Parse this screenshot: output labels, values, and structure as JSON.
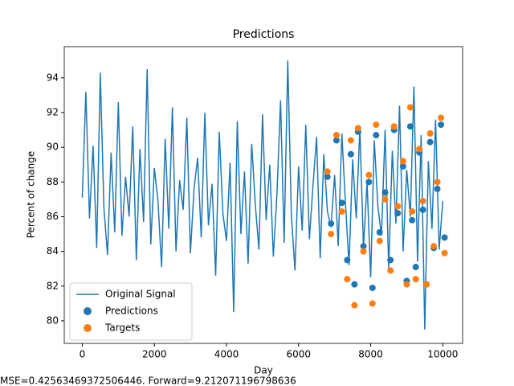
{
  "chart_data": {
    "type": "line",
    "title": "Predictions",
    "xlabel": "Day",
    "ylabel": "Percent of change",
    "footer": "MSE=0.42563469372506446. Forward=9.212071196798636",
    "xlim": [
      -500,
      10550
    ],
    "ylim": [
      78.7,
      95.8
    ],
    "xticks": [
      0,
      2000,
      4000,
      6000,
      8000,
      10000
    ],
    "yticks": [
      80,
      82,
      84,
      86,
      88,
      90,
      92,
      94
    ],
    "legend": "lower left",
    "series": [
      {
        "name": "Original Signal",
        "color": "#1f77b4",
        "type": "line",
        "x": [
          0,
          100,
          200,
          300,
          400,
          500,
          600,
          700,
          800,
          900,
          1000,
          1100,
          1200,
          1300,
          1400,
          1500,
          1600,
          1700,
          1800,
          1900,
          2000,
          2100,
          2200,
          2300,
          2400,
          2500,
          2600,
          2700,
          2800,
          2900,
          3000,
          3100,
          3200,
          3300,
          3400,
          3500,
          3600,
          3700,
          3800,
          3900,
          4000,
          4100,
          4200,
          4300,
          4400,
          4500,
          4600,
          4700,
          4800,
          4900,
          5000,
          5100,
          5200,
          5300,
          5400,
          5500,
          5600,
          5700,
          5800,
          5900,
          6000,
          6100,
          6200,
          6300,
          6400,
          6500,
          6600,
          6700,
          6800,
          6900,
          7000,
          7100,
          7200,
          7300,
          7400,
          7500,
          7600,
          7700,
          7800,
          7900,
          8000,
          8100,
          8200,
          8300,
          8400,
          8500,
          8600,
          8700,
          8800,
          8900,
          9000,
          9100,
          9200,
          9300,
          9400,
          9500,
          9600,
          9700,
          9800,
          9900,
          10000
        ],
        "values": [
          87.1,
          93.2,
          85.9,
          90.1,
          84.2,
          94.3,
          86.5,
          83.8,
          89.7,
          85.1,
          92.6,
          84.9,
          88.3,
          86.0,
          91.2,
          83.5,
          89.9,
          85.7,
          94.5,
          84.4,
          88.8,
          86.9,
          83.1,
          90.5,
          85.3,
          92.3,
          84.0,
          88.1,
          86.4,
          91.7,
          83.9,
          87.6,
          89.4,
          84.8,
          92.0,
          85.5,
          87.9,
          82.6,
          90.9,
          86.2,
          84.6,
          89.1,
          80.5,
          91.5,
          85.0,
          88.6,
          83.3,
          90.2,
          86.7,
          84.1,
          91.9,
          85.8,
          89.0,
          83.7,
          87.3,
          92.7,
          84.5,
          95.0,
          86.1,
          82.9,
          88.9,
          85.2,
          91.3,
          84.7,
          87.8,
          90.6,
          83.6,
          89.6,
          86.3,
          85.4,
          88.4,
          84.3,
          90.8,
          86.8,
          83.2,
          89.3,
          85.9,
          91.1,
          84.2,
          88.0,
          82.5,
          90.4,
          86.6,
          84.9,
          91.0,
          83.0,
          89.8,
          85.6,
          92.4,
          84.0,
          88.7,
          86.0,
          93.5,
          83.4,
          90.7,
          79.5,
          89.2,
          85.3,
          91.6,
          84.1,
          86.9
        ]
      },
      {
        "name": "Predictions",
        "color": "#1f77b4",
        "type": "scatter",
        "x": [
          6800,
          6900,
          7050,
          7200,
          7350,
          7450,
          7550,
          7650,
          7800,
          7950,
          8050,
          8150,
          8250,
          8400,
          8550,
          8650,
          8750,
          8900,
          9000,
          9100,
          9150,
          9250,
          9350,
          9450,
          9550,
          9650,
          9750,
          9850,
          9950,
          10050
        ],
        "values": [
          88.3,
          85.6,
          90.4,
          86.8,
          83.5,
          89.6,
          82.1,
          90.9,
          84.3,
          88.0,
          81.9,
          90.7,
          85.1,
          87.4,
          83.5,
          91.0,
          86.2,
          88.9,
          82.3,
          91.2,
          85.8,
          83.1,
          89.7,
          86.4,
          82.1,
          90.3,
          84.2,
          87.6,
          91.3,
          84.8
        ]
      },
      {
        "name": "Targets",
        "color": "#ff7f0e",
        "type": "scatter",
        "x": [
          6800,
          6900,
          7050,
          7200,
          7350,
          7450,
          7550,
          7650,
          7800,
          7950,
          8050,
          8150,
          8250,
          8400,
          8550,
          8650,
          8750,
          8900,
          9000,
          9100,
          9150,
          9250,
          9350,
          9450,
          9550,
          9650,
          9750,
          9850,
          9950,
          10050
        ],
        "values": [
          88.6,
          85.0,
          90.7,
          86.3,
          82.4,
          90.4,
          80.9,
          91.1,
          84.0,
          88.4,
          81.0,
          91.3,
          84.6,
          87.0,
          82.9,
          91.2,
          86.6,
          89.2,
          82.1,
          92.3,
          86.3,
          82.4,
          89.9,
          86.9,
          82.1,
          90.8,
          84.3,
          88.0,
          91.7,
          83.9
        ]
      }
    ]
  }
}
